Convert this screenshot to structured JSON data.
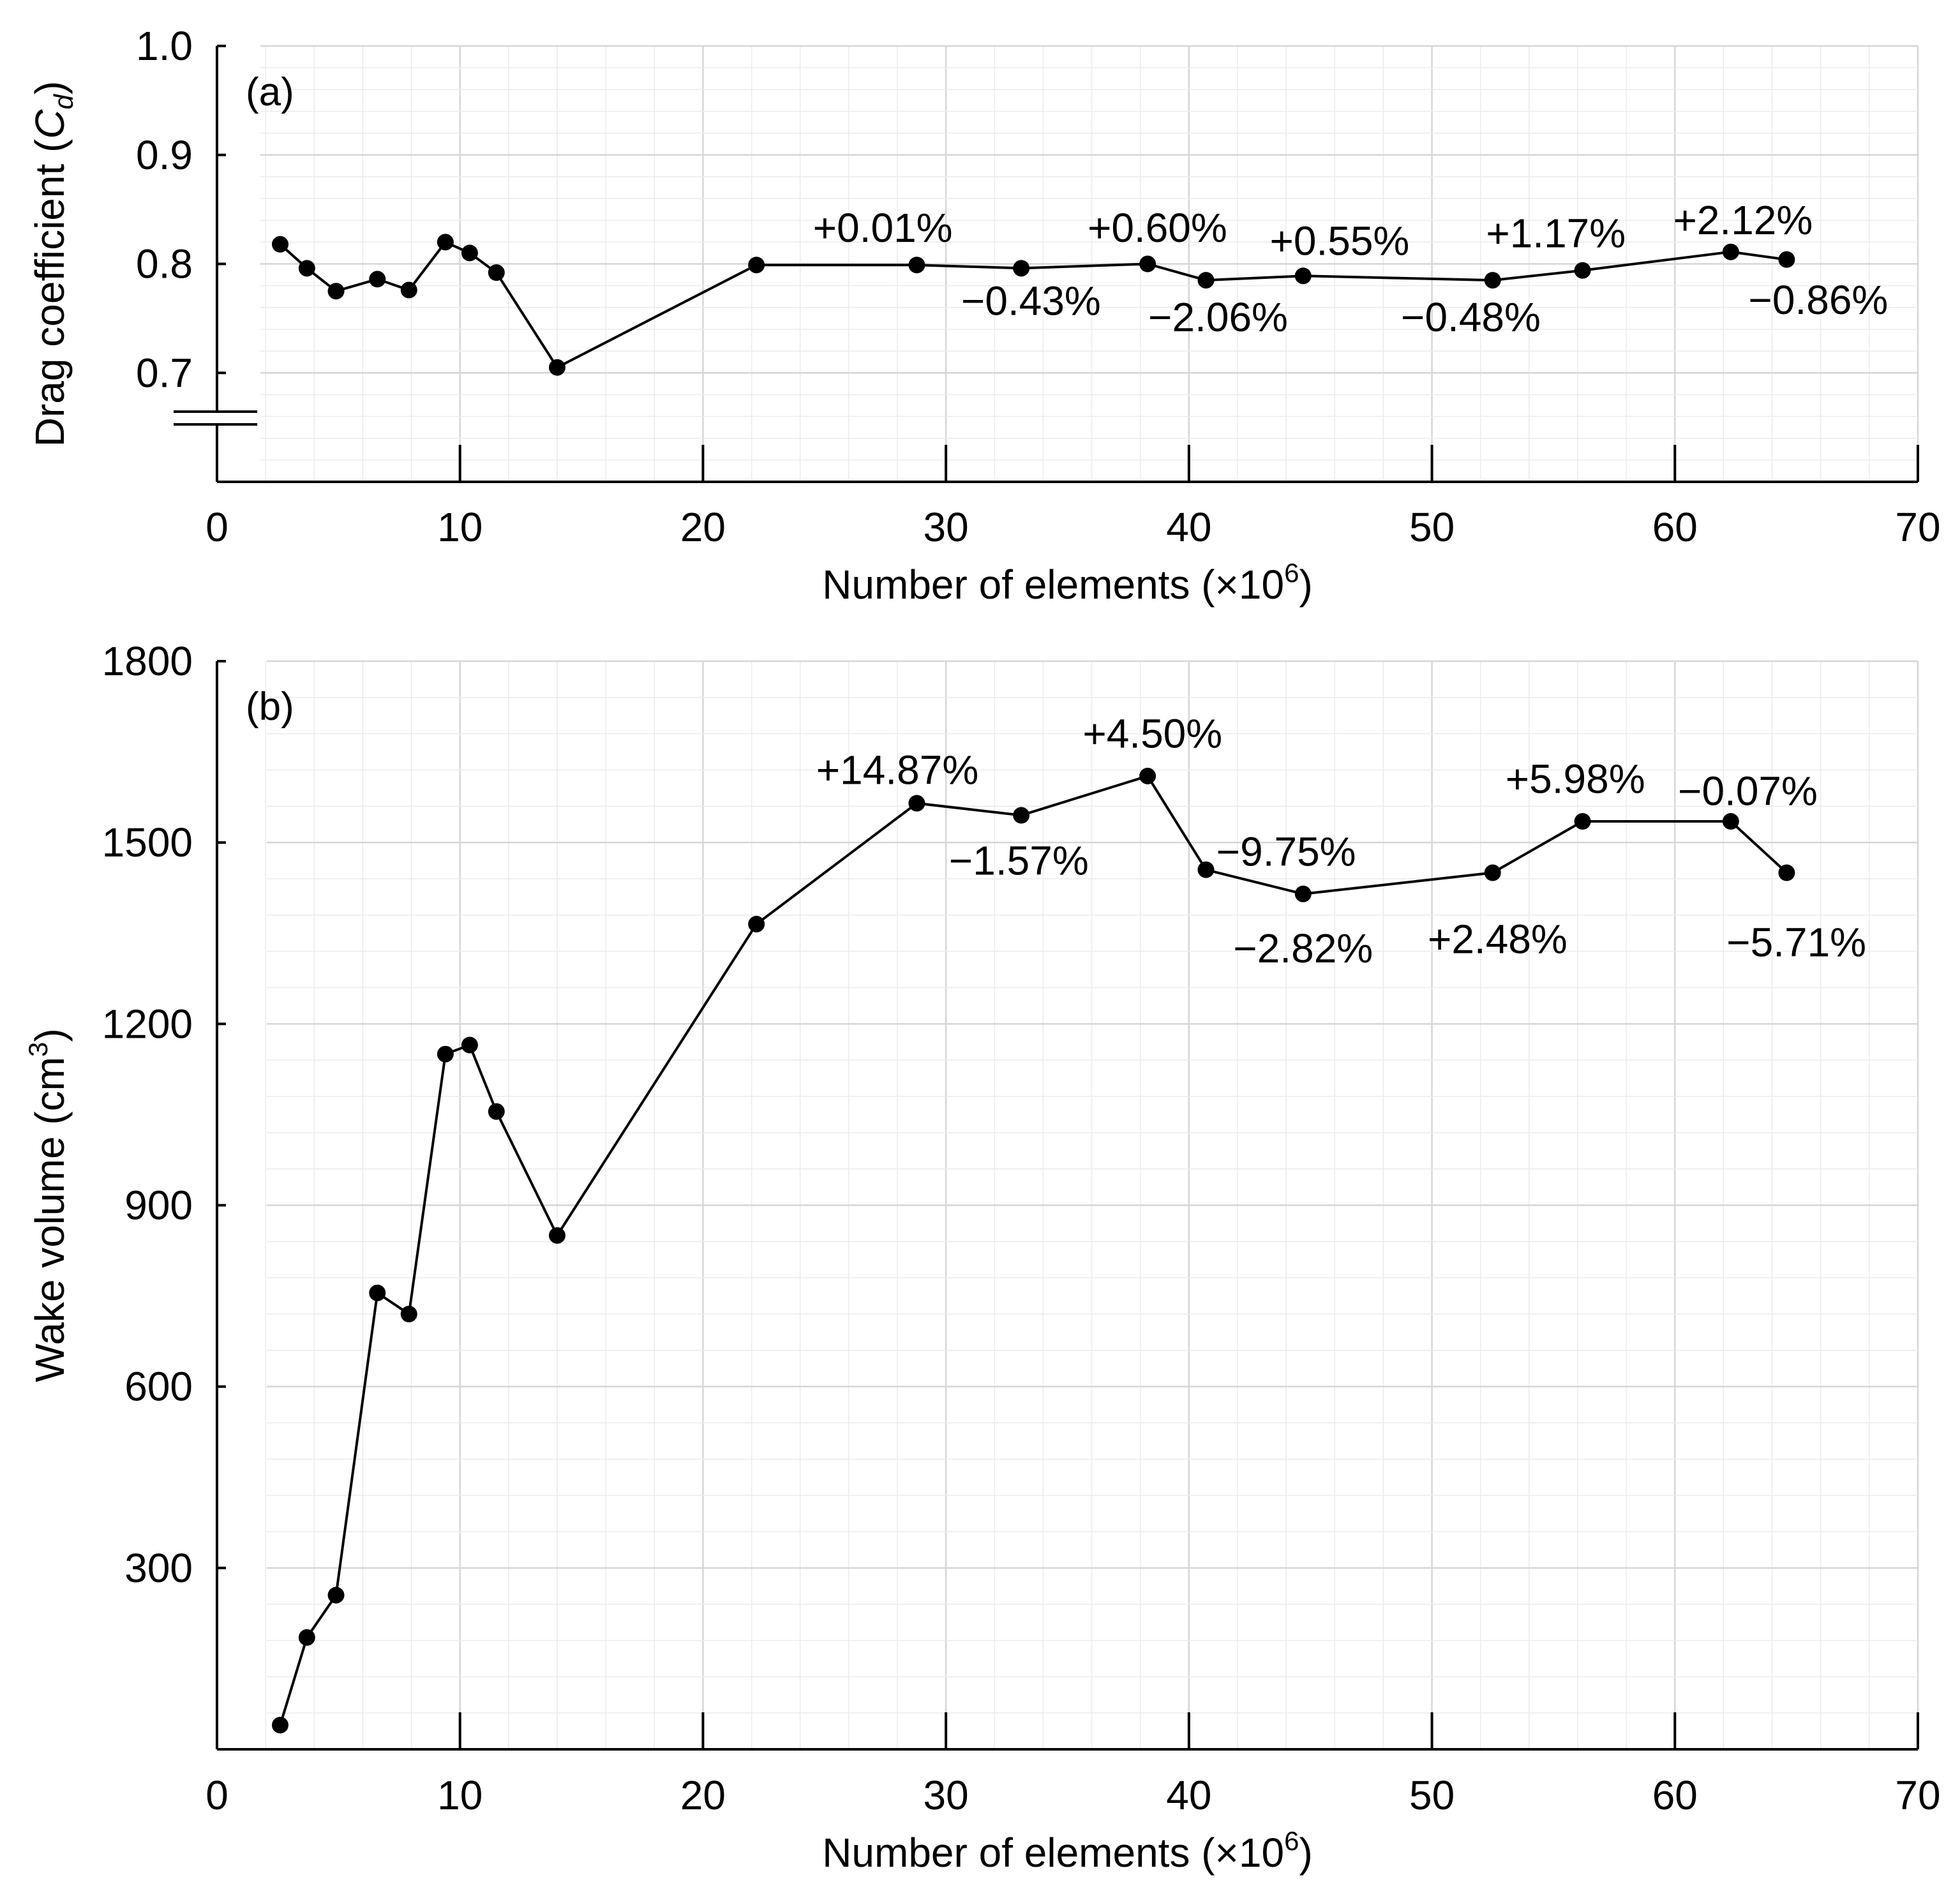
{
  "chart_data": [
    {
      "type": "line",
      "panel_label": "(a)",
      "title": "",
      "xlabel": "Number of elements (×10",
      "xlabel_sup": "6",
      "xlabel_end": ")",
      "ylabel": "Drag coefficient (",
      "ylabel_var": "C",
      "ylabel_sub": "d",
      "ylabel_end": ")",
      "xlim": [
        0,
        70
      ],
      "ylim": [
        0.6,
        1.0
      ],
      "axis_break": true,
      "x_ticks": [
        0,
        10,
        20,
        30,
        40,
        50,
        60,
        70
      ],
      "x_tick_labels": [
        "0",
        "10",
        "20",
        "30",
        "40",
        "50",
        "60",
        "70"
      ],
      "y_ticks": [
        0.7,
        0.8,
        0.9,
        1.0
      ],
      "y_tick_labels": [
        "0.7",
        "0.8",
        "0.9",
        "1.0"
      ],
      "grid": true,
      "series": [
        {
          "name": "Cd",
          "x": [
            2.6,
            3.7,
            4.9,
            6.6,
            7.9,
            9.4,
            10.4,
            11.5,
            14.0,
            22.2,
            28.8,
            33.1,
            38.3,
            40.7,
            44.7,
            52.5,
            56.2,
            62.3,
            64.6
          ],
          "y": [
            0.818,
            0.796,
            0.775,
            0.786,
            0.776,
            0.82,
            0.81,
            0.792,
            0.705,
            0.799,
            0.799,
            0.796,
            0.8,
            0.785,
            0.789,
            0.785,
            0.794,
            0.811,
            0.804
          ]
        }
      ],
      "annotations": [
        {
          "text": "+0.01%",
          "x": 27.4,
          "y": 0.833
        },
        {
          "text": "−0.43%",
          "x": 33.5,
          "y": 0.766
        },
        {
          "text": "+0.60%",
          "x": 38.7,
          "y": 0.833
        },
        {
          "text": "−2.06%",
          "x": 41.2,
          "y": 0.751
        },
        {
          "text": "+0.55%",
          "x": 46.2,
          "y": 0.821
        },
        {
          "text": "−0.48%",
          "x": 51.6,
          "y": 0.751
        },
        {
          "text": "+1.17%",
          "x": 55.1,
          "y": 0.828
        },
        {
          "text": "+2.12%",
          "x": 62.8,
          "y": 0.84
        },
        {
          "text": "−0.86%",
          "x": 65.9,
          "y": 0.767
        }
      ]
    },
    {
      "type": "line",
      "panel_label": "(b)",
      "title": "",
      "xlabel": "Number of elements (×10",
      "xlabel_sup": "6",
      "xlabel_end": ")",
      "ylabel": "Wake volume (cm",
      "ylabel_sup": "3",
      "ylabel_end": ")",
      "xlim": [
        0,
        70
      ],
      "ylim": [
        0,
        1800
      ],
      "x_ticks": [
        0,
        10,
        20,
        30,
        40,
        50,
        60,
        70
      ],
      "x_tick_labels": [
        "0",
        "10",
        "20",
        "30",
        "40",
        "50",
        "60",
        "70"
      ],
      "y_ticks": [
        300,
        600,
        900,
        1200,
        1500,
        1800
      ],
      "y_tick_labels": [
        "300",
        "600",
        "900",
        "1200",
        "1500",
        "1800"
      ],
      "grid": true,
      "series": [
        {
          "name": "Wake volume",
          "x": [
            2.6,
            3.7,
            4.9,
            6.6,
            7.9,
            9.4,
            10.4,
            11.5,
            14.0,
            22.2,
            28.8,
            33.1,
            38.3,
            40.7,
            44.7,
            52.5,
            56.2,
            62.3,
            64.6
          ],
          "y": [
            40,
            185,
            255,
            755,
            720,
            1150,
            1165,
            1055,
            850,
            1365,
            1565,
            1545,
            1610,
            1455,
            1415,
            1450,
            1535,
            1535,
            1450
          ]
        }
      ],
      "annotations": [
        {
          "text": "+14.87%",
          "x": 28.0,
          "y": 1620
        },
        {
          "text": "−1.57%",
          "x": 33.0,
          "y": 1470
        },
        {
          "text": "+4.50%",
          "x": 38.5,
          "y": 1680
        },
        {
          "text": "−9.75%",
          "x": 44.0,
          "y": 1485
        },
        {
          "text": "−2.82%",
          "x": 44.7,
          "y": 1325
        },
        {
          "text": "+2.48%",
          "x": 52.7,
          "y": 1340
        },
        {
          "text": "+5.98%",
          "x": 55.9,
          "y": 1605
        },
        {
          "text": "−0.07%",
          "x": 63.0,
          "y": 1585
        },
        {
          "text": "−5.71%",
          "x": 65.0,
          "y": 1335
        }
      ]
    }
  ]
}
